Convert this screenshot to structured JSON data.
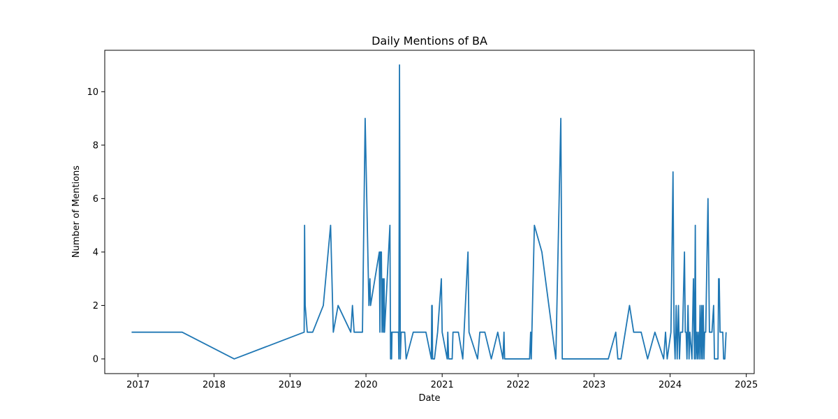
{
  "chart_data": {
    "type": "line",
    "title": "Daily Mentions of BA",
    "xlabel": "Date",
    "ylabel": "Number of Mentions",
    "xlim": [
      "2016-07-25",
      "2025-02-08"
    ],
    "ylim": [
      -0.55,
      11.55
    ],
    "x_ticks": [
      "2017",
      "2018",
      "2019",
      "2020",
      "2021",
      "2022",
      "2023",
      "2024",
      "2025"
    ],
    "y_ticks": [
      "0",
      "2",
      "4",
      "6",
      "8",
      "10"
    ],
    "grid": false,
    "line_color": "#1f77b4",
    "series": [
      {
        "points": [
          [
            "2016-12-01",
            1
          ],
          [
            "2017-08-01",
            1
          ],
          [
            "2018-04-08",
            0
          ],
          [
            "2019-03-10",
            1
          ],
          [
            "2019-03-12",
            5
          ],
          [
            "2019-03-15",
            2
          ],
          [
            "2019-03-25",
            1
          ],
          [
            "2019-04-20",
            1
          ],
          [
            "2019-06-10",
            2
          ],
          [
            "2019-07-15",
            5
          ],
          [
            "2019-07-28",
            1
          ],
          [
            "2019-08-20",
            2
          ],
          [
            "2019-10-20",
            1
          ],
          [
            "2019-10-28",
            2
          ],
          [
            "2019-11-05",
            1
          ],
          [
            "2019-12-15",
            1
          ],
          [
            "2019-12-28",
            9
          ],
          [
            "2020-01-15",
            2
          ],
          [
            "2020-01-20",
            3
          ],
          [
            "2020-01-23",
            2
          ],
          [
            "2020-03-05",
            4
          ],
          [
            "2020-03-08",
            1
          ],
          [
            "2020-03-10",
            4
          ],
          [
            "2020-03-15",
            4
          ],
          [
            "2020-03-18",
            1
          ],
          [
            "2020-03-22",
            3
          ],
          [
            "2020-03-25",
            1
          ],
          [
            "2020-03-28",
            3
          ],
          [
            "2020-03-30",
            1
          ],
          [
            "2020-04-25",
            5
          ],
          [
            "2020-04-28",
            0
          ],
          [
            "2020-05-01",
            1
          ],
          [
            "2020-05-03",
            0
          ],
          [
            "2020-05-05",
            1
          ],
          [
            "2020-06-05",
            1
          ],
          [
            "2020-06-07",
            0
          ],
          [
            "2020-06-10",
            11
          ],
          [
            "2020-06-14",
            0
          ],
          [
            "2020-06-18",
            1
          ],
          [
            "2020-07-05",
            1
          ],
          [
            "2020-07-12",
            0
          ],
          [
            "2020-08-15",
            1
          ],
          [
            "2020-10-15",
            1
          ],
          [
            "2020-11-10",
            0
          ],
          [
            "2020-11-12",
            2
          ],
          [
            "2020-11-14",
            2
          ],
          [
            "2020-11-16",
            0
          ],
          [
            "2020-11-25",
            0
          ],
          [
            "2020-12-10",
            1
          ],
          [
            "2020-12-28",
            3
          ],
          [
            "2021-01-01",
            1
          ],
          [
            "2021-01-25",
            0
          ],
          [
            "2021-01-28",
            1
          ],
          [
            "2021-02-01",
            0
          ],
          [
            "2021-02-18",
            0
          ],
          [
            "2021-02-22",
            1
          ],
          [
            "2021-03-20",
            1
          ],
          [
            "2021-04-10",
            0
          ],
          [
            "2021-05-05",
            4
          ],
          [
            "2021-05-10",
            1
          ],
          [
            "2021-06-20",
            0
          ],
          [
            "2021-07-01",
            1
          ],
          [
            "2021-07-25",
            1
          ],
          [
            "2021-08-25",
            0
          ],
          [
            "2021-09-25",
            1
          ],
          [
            "2021-10-20",
            0
          ],
          [
            "2021-10-25",
            1
          ],
          [
            "2021-10-28",
            0
          ],
          [
            "2022-02-25",
            0
          ],
          [
            "2022-03-02",
            1
          ],
          [
            "2022-03-05",
            0
          ],
          [
            "2022-03-20",
            5
          ],
          [
            "2022-04-25",
            4
          ],
          [
            "2022-07-01",
            0
          ],
          [
            "2022-07-25",
            9
          ],
          [
            "2022-08-01",
            0
          ],
          [
            "2023-03-10",
            0
          ],
          [
            "2023-04-15",
            1
          ],
          [
            "2023-04-25",
            0
          ],
          [
            "2023-05-10",
            0
          ],
          [
            "2023-06-20",
            2
          ],
          [
            "2023-07-10",
            1
          ],
          [
            "2023-08-15",
            1
          ],
          [
            "2023-09-15",
            0
          ],
          [
            "2023-10-20",
            1
          ],
          [
            "2023-12-01",
            0
          ],
          [
            "2023-12-10",
            1
          ],
          [
            "2023-12-18",
            0
          ],
          [
            "2024-01-05",
            1
          ],
          [
            "2024-01-15",
            7
          ],
          [
            "2024-01-20",
            1
          ],
          [
            "2024-01-25",
            0
          ],
          [
            "2024-01-30",
            2
          ],
          [
            "2024-02-04",
            0
          ],
          [
            "2024-02-10",
            2
          ],
          [
            "2024-02-15",
            0
          ],
          [
            "2024-02-20",
            1
          ],
          [
            "2024-03-01",
            1
          ],
          [
            "2024-03-10",
            4
          ],
          [
            "2024-03-14",
            1
          ],
          [
            "2024-03-18",
            1
          ],
          [
            "2024-03-22",
            0
          ],
          [
            "2024-03-27",
            2
          ],
          [
            "2024-04-01",
            0
          ],
          [
            "2024-04-05",
            1
          ],
          [
            "2024-04-15",
            0
          ],
          [
            "2024-04-22",
            3
          ],
          [
            "2024-04-27",
            0
          ],
          [
            "2024-05-01",
            5
          ],
          [
            "2024-05-04",
            0
          ],
          [
            "2024-05-08",
            1
          ],
          [
            "2024-05-12",
            0
          ],
          [
            "2024-05-15",
            1
          ],
          [
            "2024-05-20",
            0
          ],
          [
            "2024-05-24",
            2
          ],
          [
            "2024-05-28",
            0
          ],
          [
            "2024-06-01",
            2
          ],
          [
            "2024-06-04",
            0
          ],
          [
            "2024-06-08",
            2
          ],
          [
            "2024-06-12",
            0
          ],
          [
            "2024-06-15",
            1
          ],
          [
            "2024-06-20",
            1
          ],
          [
            "2024-07-01",
            6
          ],
          [
            "2024-07-08",
            1
          ],
          [
            "2024-07-20",
            1
          ],
          [
            "2024-07-28",
            2
          ],
          [
            "2024-08-01",
            0
          ],
          [
            "2024-08-18",
            0
          ],
          [
            "2024-08-21",
            3
          ],
          [
            "2024-08-24",
            3
          ],
          [
            "2024-08-28",
            1
          ],
          [
            "2024-09-10",
            1
          ],
          [
            "2024-09-14",
            0
          ],
          [
            "2024-09-20",
            0
          ],
          [
            "2024-09-26",
            1
          ]
        ]
      }
    ]
  }
}
